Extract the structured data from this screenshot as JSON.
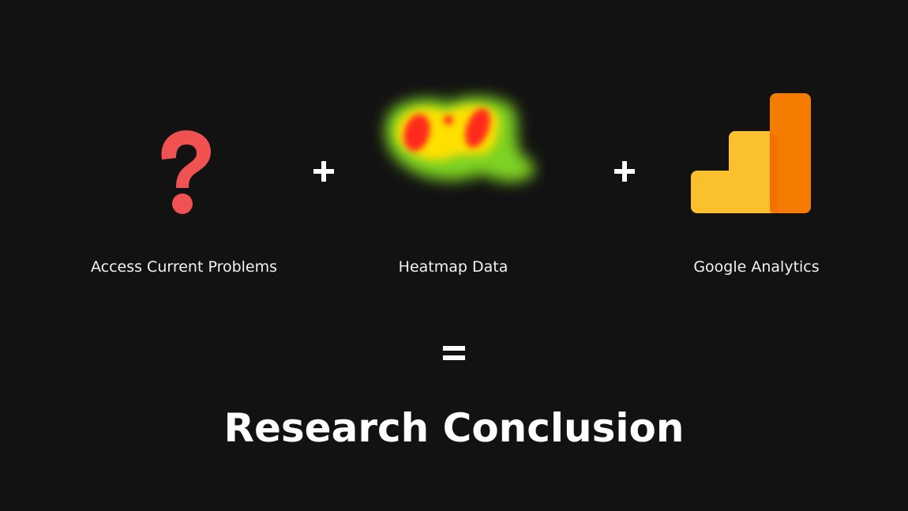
{
  "items": [
    {
      "icon": "question-mark-icon",
      "label": "Access Current Problems"
    },
    {
      "icon": "heatmap-icon",
      "label": "Heatmap Data"
    },
    {
      "icon": "google-analytics-icon",
      "label": "Google Analytics"
    }
  ],
  "operators": {
    "plus_icon": "plus-icon",
    "equals_icon": "equals-icon"
  },
  "result": {
    "label": "Research Conclusion"
  },
  "colors": {
    "background": "#121212",
    "question_mark": "#f05151",
    "heat_hot": "#ff2a1a",
    "heat_warm": "#ffe000",
    "heat_cool": "#7ed321",
    "analytics_light": "#fbc02d",
    "analytics_dark": "#f57c00",
    "text": "#ffffff"
  }
}
